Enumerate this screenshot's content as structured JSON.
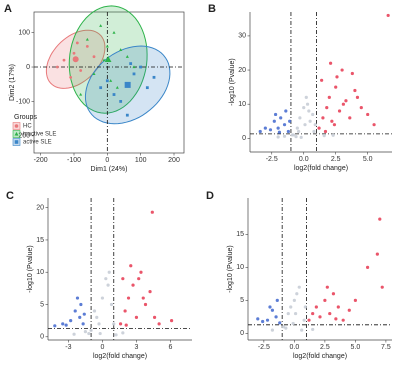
{
  "chart_data": [
    {
      "type": "scatter",
      "panel": "A",
      "xlabel": "Dim1 (24%)",
      "ylabel": "Dim2 (17%)",
      "xlim": [
        -220,
        230
      ],
      "ylim": [
        -250,
        160
      ],
      "xticks": [
        -200,
        -100,
        0,
        100,
        200
      ],
      "yticks": [
        -200,
        -100,
        0,
        100
      ],
      "vlines": [
        0
      ],
      "hlines": [
        0
      ],
      "legend_title": "Groups",
      "legend": "bottom-left",
      "frame": true,
      "ellipses": true,
      "series": [
        {
          "name": "HC",
          "color": "#e8787a",
          "shape": "circle",
          "x": [
            -130,
            -100,
            -80,
            -60,
            -150,
            -90,
            -40,
            -110
          ],
          "values": [
            20,
            40,
            -10,
            60,
            0,
            70,
            30,
            -30
          ]
        },
        {
          "name": "inactive SLE",
          "color": "#2db34a",
          "shape": "triangle",
          "x": [
            -60,
            -20,
            0,
            20,
            40,
            60,
            -40,
            10,
            30,
            -10,
            80,
            -80
          ],
          "values": [
            80,
            120,
            60,
            100,
            50,
            30,
            -20,
            -40,
            -60,
            20,
            0,
            -80
          ]
        },
        {
          "name": "active SLE",
          "color": "#3a86c8",
          "shape": "square",
          "x": [
            0,
            40,
            80,
            100,
            120,
            60,
            20,
            140,
            -20,
            70
          ],
          "values": [
            -40,
            -100,
            -20,
            0,
            -60,
            -140,
            -80,
            -30,
            -60,
            10
          ]
        }
      ]
    },
    {
      "type": "scatter",
      "panel": "B",
      "xlabel": "log2(fold change)",
      "ylabel": "-log10 (Pvalue)",
      "xlim": [
        -4.2,
        6.9
      ],
      "ylim": [
        -4,
        37
      ],
      "xticks": [
        {
          "value": -2.5,
          "label": "-2.5"
        },
        {
          "value": 0,
          "label": "0.0"
        },
        {
          "value": 2.5,
          "label": "2.5"
        },
        {
          "value": 5,
          "label": "5.0"
        }
      ],
      "yticks": [
        0,
        10,
        20,
        30
      ],
      "vlines": [
        -1,
        1
      ],
      "hlines": [
        1.3
      ],
      "frame": false,
      "series": [
        {
          "color": "#c8cdd6",
          "shape": "circle",
          "x": [
            -0.8,
            -0.5,
            -0.3,
            0,
            0.2,
            0.5,
            0.8,
            -0.6,
            0.1,
            0.4,
            -0.2,
            0.7,
            -1.5,
            1.6,
            -2,
            2.3,
            0.3,
            -0.4,
            0.9,
            -0.9
          ],
          "values": [
            1,
            3,
            6,
            9,
            12,
            5,
            2,
            0.5,
            4,
            8,
            0.3,
            7,
            0.6,
            0.8,
            0.4,
            0.9,
            10,
            2,
            4,
            1
          ]
        },
        {
          "color": "#e8435a",
          "shape": "circle",
          "x": [
            1.2,
            1.5,
            1.8,
            2,
            2.2,
            2.5,
            2.8,
            3,
            3.3,
            3.6,
            4,
            4.5,
            5,
            5.5,
            1.4,
            2.1,
            2.6,
            3.1,
            3.8,
            4.2,
            1.7,
            2.4,
            6.6
          ],
          "values": [
            3,
            6,
            9,
            12,
            5,
            15,
            8,
            20,
            11,
            6,
            14,
            9,
            7,
            4,
            17,
            22,
            18,
            10,
            19,
            12,
            2,
            4,
            36
          ]
        },
        {
          "color": "#4a6fd0",
          "shape": "circle",
          "x": [
            -1.2,
            -1.5,
            -1.8,
            -2,
            -2.3,
            -2.6,
            -3,
            -1.4,
            -1.9,
            -2.2,
            -3.4,
            -1.1
          ],
          "values": [
            2,
            4,
            6,
            3,
            5,
            2.5,
            3,
            8,
            1.8,
            7,
            2,
            5
          ]
        }
      ]
    },
    {
      "type": "scatter",
      "panel": "C",
      "xlabel": "log2(fold change)",
      "ylabel": "-log10 (Pvalue)",
      "xlim": [
        -4.8,
        7.9
      ],
      "ylim": [
        -0.5,
        21.5
      ],
      "xticks": [
        -3,
        0,
        3,
        6
      ],
      "yticks": [
        0,
        5,
        10,
        15,
        20
      ],
      "vlines": [
        -1,
        1
      ],
      "hlines": [
        1.3
      ],
      "frame": false,
      "series": [
        {
          "color": "#c8cdd6",
          "shape": "circle",
          "x": [
            -1,
            -0.5,
            0,
            0.5,
            1,
            -0.7,
            0.3,
            -0.2,
            0.8,
            -1.5,
            1.8,
            -2.5,
            0.6,
            -0.3,
            1.2,
            -1.2
          ],
          "values": [
            1,
            3,
            6,
            8,
            2,
            4,
            9,
            0.5,
            5,
            0.8,
            0.6,
            0.4,
            10,
            2,
            0.3,
            0.5
          ]
        },
        {
          "color": "#e8435a",
          "shape": "circle",
          "x": [
            1.6,
            2,
            2.3,
            2.7,
            3,
            3.4,
            3.8,
            4.2,
            4.6,
            5,
            2.5,
            3.2,
            2.1,
            3.6,
            1.8,
            4.4,
            6.1
          ],
          "values": [
            2,
            4,
            6,
            8,
            3,
            10,
            5,
            7,
            3,
            2,
            11,
            9,
            1.8,
            6,
            9,
            19.3,
            2.5
          ]
        },
        {
          "color": "#4a6fd0",
          "shape": "circle",
          "x": [
            -1.7,
            -2,
            -2.4,
            -2.8,
            -3.2,
            -1.9,
            -2.2,
            -3.5,
            -4.2,
            -1.6
          ],
          "values": [
            2,
            3,
            4,
            2.5,
            1.8,
            5,
            6,
            2,
            1.7,
            3.5
          ]
        }
      ]
    },
    {
      "type": "scatter",
      "panel": "D",
      "xlabel": "log2(fold change)",
      "ylabel": "-log10 (Pvalue)",
      "xlim": [
        -3.8,
        8
      ],
      "ylim": [
        -1,
        20.5
      ],
      "xticks": [
        {
          "value": -2.5,
          "label": "-2.5"
        },
        {
          "value": 0,
          "label": "0.0"
        },
        {
          "value": 2.5,
          "label": "2.5"
        },
        {
          "value": 5,
          "label": "5.0"
        },
        {
          "value": 7.5,
          "label": "7.5"
        }
      ],
      "yticks": [
        0,
        5,
        10,
        15
      ],
      "vlines": [
        -1,
        1
      ],
      "hlines": [
        1.3
      ],
      "frame": false,
      "series": [
        {
          "color": "#c8cdd6",
          "shape": "circle",
          "x": [
            -0.9,
            -0.5,
            0,
            0.4,
            0.8,
            -0.3,
            0.2,
            0.6,
            -0.7,
            1.5,
            -1.8,
            0.1,
            -0.1,
            0.9
          ],
          "values": [
            1,
            3,
            5,
            7,
            2,
            4,
            6,
            0.5,
            0.8,
            0.6,
            0.5,
            3,
            1.5,
            4
          ]
        },
        {
          "color": "#e8435a",
          "shape": "circle",
          "x": [
            1.2,
            1.5,
            1.8,
            2.1,
            2.5,
            2.9,
            3.2,
            3.6,
            4,
            4.5,
            5,
            6,
            6.8,
            7,
            7.2,
            2.7,
            3.4
          ],
          "values": [
            2,
            3,
            4,
            2.5,
            5,
            3,
            6,
            4,
            2,
            3.5,
            5,
            10,
            12,
            17.3,
            7,
            7,
            2.2
          ]
        },
        {
          "color": "#4a6fd0",
          "shape": "circle",
          "x": [
            -1.2,
            -1.5,
            -1.8,
            -2.2,
            -2.6,
            -3,
            -1.4,
            -2
          ],
          "values": [
            1.6,
            2.5,
            3.5,
            2,
            1.8,
            2.2,
            5,
            4
          ]
        }
      ]
    }
  ]
}
